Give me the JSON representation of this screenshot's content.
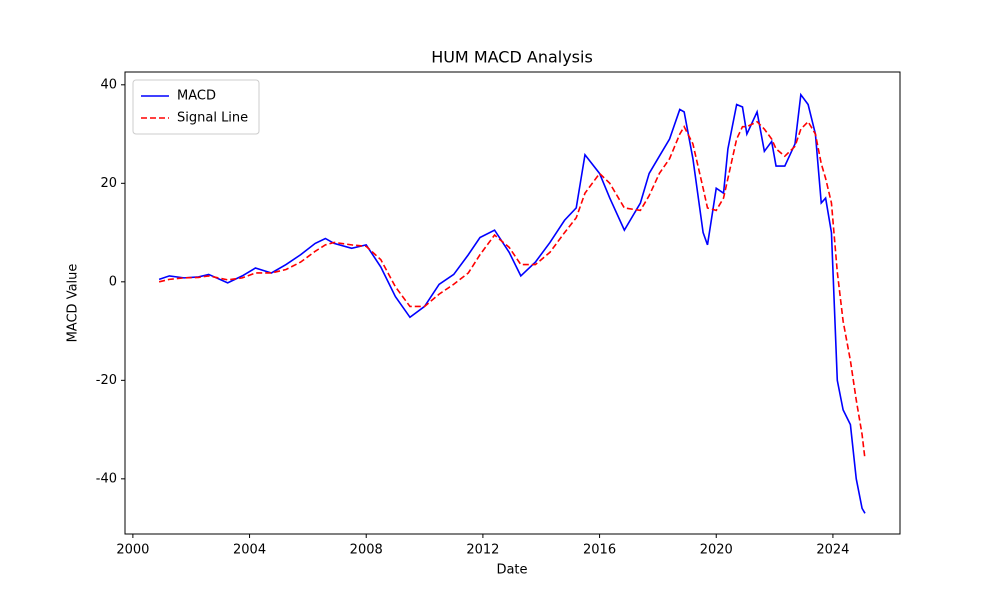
{
  "chart_data": {
    "type": "line",
    "title": "HUM MACD Analysis",
    "xlabel": "Date",
    "ylabel": "MACD Value",
    "x": [
      2000.9,
      2001.25,
      2001.75,
      2002.25,
      2002.6,
      2003.25,
      2003.75,
      2004.2,
      2004.75,
      2005.25,
      2005.75,
      2006.25,
      2006.6,
      2006.9,
      2007.5,
      2008.0,
      2008.5,
      2009.0,
      2009.5,
      2010.0,
      2010.5,
      2011.0,
      2011.5,
      2011.9,
      2012.4,
      2012.9,
      2013.3,
      2013.8,
      2014.3,
      2014.8,
      2015.2,
      2015.5,
      2016.0,
      2016.35,
      2016.85,
      2017.4,
      2017.7,
      2018.05,
      2018.4,
      2018.75,
      2018.9,
      2019.2,
      2019.55,
      2019.7,
      2020.0,
      2020.25,
      2020.4,
      2020.7,
      2020.9,
      2021.05,
      2021.4,
      2021.65,
      2021.9,
      2022.05,
      2022.35,
      2022.7,
      2022.9,
      2023.15,
      2023.4,
      2023.6,
      2023.75,
      2023.95,
      2024.15,
      2024.35,
      2024.6,
      2024.8,
      2025.0,
      2025.1
    ],
    "series": [
      {
        "name": "MACD",
        "color": "#0000ff",
        "dash": "solid",
        "values": [
          0.5,
          1.2,
          0.8,
          1.0,
          1.5,
          -0.2,
          1.2,
          2.8,
          1.8,
          3.5,
          5.5,
          7.8,
          8.8,
          7.8,
          6.8,
          7.5,
          3,
          -3,
          -7.2,
          -5,
          -0.5,
          1.5,
          5.5,
          9,
          10.5,
          6,
          1.2,
          4,
          8,
          12.5,
          15,
          25.8,
          22,
          17,
          10.5,
          16,
          22,
          25.5,
          29,
          35,
          34.5,
          25,
          10,
          7.5,
          19,
          18,
          27,
          36,
          35.5,
          30,
          34.5,
          26.5,
          28.5,
          23.5,
          23.5,
          28,
          38,
          36,
          30,
          16,
          17,
          10,
          -20,
          -26,
          -29,
          -40,
          -46,
          -47
        ]
      },
      {
        "name": "Signal Line",
        "color": "#ff0000",
        "dash": "dashed",
        "values": [
          0,
          0.5,
          0.8,
          0.9,
          1.2,
          0.4,
          0.8,
          1.8,
          1.8,
          2.5,
          4,
          6.2,
          7.5,
          8,
          7.5,
          7.2,
          4.5,
          -1,
          -5,
          -5,
          -2.5,
          -0.5,
          1.8,
          5.5,
          9.5,
          7,
          3.5,
          3.5,
          6,
          10,
          13,
          18,
          22,
          20,
          15,
          14.5,
          17.5,
          22,
          25,
          30,
          31.5,
          28,
          19,
          15,
          14.5,
          17,
          21,
          29,
          31.5,
          31.5,
          32.5,
          31,
          29,
          27,
          25.5,
          27.5,
          31,
          32.5,
          30,
          24,
          21,
          16,
          2,
          -8,
          -16,
          -24,
          -31,
          -36
        ]
      }
    ],
    "xlim": [
      1999.73,
      2026.3
    ],
    "xticks": [
      2000,
      2004,
      2008,
      2012,
      2016,
      2020,
      2024
    ],
    "ylim": [
      -51.2,
      42.6
    ],
    "yticks": [
      -40,
      -20,
      0,
      20,
      40
    ],
    "grid": false,
    "legend": "upper left"
  }
}
